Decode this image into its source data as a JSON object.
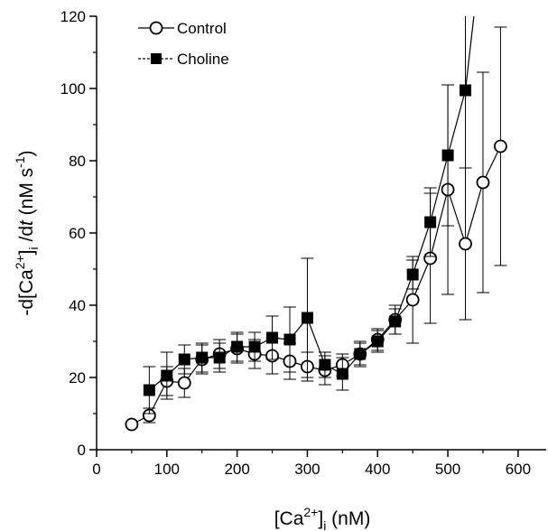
{
  "chart_data": {
    "type": "scatter",
    "xlabel": "[Ca2+]i (nM)",
    "ylabel": "-d[Ca2+]i/dt (nM s-1)",
    "xlim": [
      0,
      640
    ],
    "ylim": [
      0,
      120
    ],
    "x_ticks": [
      "0",
      "100",
      "200",
      "300",
      "400",
      "500",
      "600"
    ],
    "y_ticks": [
      "0",
      "20",
      "40",
      "60",
      "80",
      "100",
      "120"
    ],
    "grid": false,
    "legend_position": "top-left",
    "series": [
      {
        "name": "Control",
        "marker": "open-circle",
        "color": "#000000",
        "points": [
          {
            "x": 50,
            "y": 7,
            "err": 0
          },
          {
            "x": 75,
            "y": 9.5,
            "err": 2
          },
          {
            "x": 100,
            "y": 19,
            "err": 4
          },
          {
            "x": 125,
            "y": 18.5,
            "err": 4
          },
          {
            "x": 150,
            "y": 25,
            "err": 4
          },
          {
            "x": 175,
            "y": 26.5,
            "err": 4
          },
          {
            "x": 200,
            "y": 28,
            "err": 4
          },
          {
            "x": 225,
            "y": 26.5,
            "err": 4
          },
          {
            "x": 250,
            "y": 26,
            "err": 5
          },
          {
            "x": 275,
            "y": 24.5,
            "err": 5
          },
          {
            "x": 300,
            "y": 23,
            "err": 4
          },
          {
            "x": 325,
            "y": 22,
            "err": 4
          },
          {
            "x": 350,
            "y": 23.5,
            "err": 3
          },
          {
            "x": 375,
            "y": 26.5,
            "err": 3
          },
          {
            "x": 400,
            "y": 30.5,
            "err": 3
          },
          {
            "x": 425,
            "y": 36,
            "err": 4
          },
          {
            "x": 450,
            "y": 41.5,
            "err": 12
          },
          {
            "x": 475,
            "y": 53,
            "err": 18
          },
          {
            "x": 500,
            "y": 72,
            "err": 29
          },
          {
            "x": 525,
            "y": 57,
            "err": 21
          },
          {
            "x": 550,
            "y": 74,
            "err": 30.5
          },
          {
            "x": 575,
            "y": 84,
            "err": 33
          }
        ]
      },
      {
        "name": "Choline",
        "marker": "filled-square",
        "color": "#000000",
        "points": [
          {
            "x": 75,
            "y": 16.5,
            "err": 6.5
          },
          {
            "x": 100,
            "y": 20.5,
            "err": 6.5
          },
          {
            "x": 125,
            "y": 25,
            "err": 4
          },
          {
            "x": 150,
            "y": 25.5,
            "err": 4
          },
          {
            "x": 175,
            "y": 25.5,
            "err": 4
          },
          {
            "x": 200,
            "y": 28.5,
            "err": 4
          },
          {
            "x": 225,
            "y": 28.5,
            "err": 4
          },
          {
            "x": 250,
            "y": 31,
            "err": 6
          },
          {
            "x": 275,
            "y": 30.5,
            "err": 9
          },
          {
            "x": 300,
            "y": 36.5,
            "err": 16.5
          },
          {
            "x": 325,
            "y": 23.5,
            "err": 3.5
          },
          {
            "x": 350,
            "y": 21,
            "err": 4.5
          },
          {
            "x": 375,
            "y": 26.5,
            "err": 3.5
          },
          {
            "x": 400,
            "y": 30,
            "err": 3
          },
          {
            "x": 425,
            "y": 35.5,
            "err": 3.5
          },
          {
            "x": 450,
            "y": 48.5,
            "err": 4
          },
          {
            "x": 475,
            "y": 63,
            "err": 9.5
          },
          {
            "x": 500,
            "y": 81.5,
            "err": 19.5
          },
          {
            "x": 525,
            "y": 99.5,
            "err": 21.5
          }
        ],
        "line_continues_to": {
          "x": 540,
          "y": 125
        }
      }
    ]
  }
}
